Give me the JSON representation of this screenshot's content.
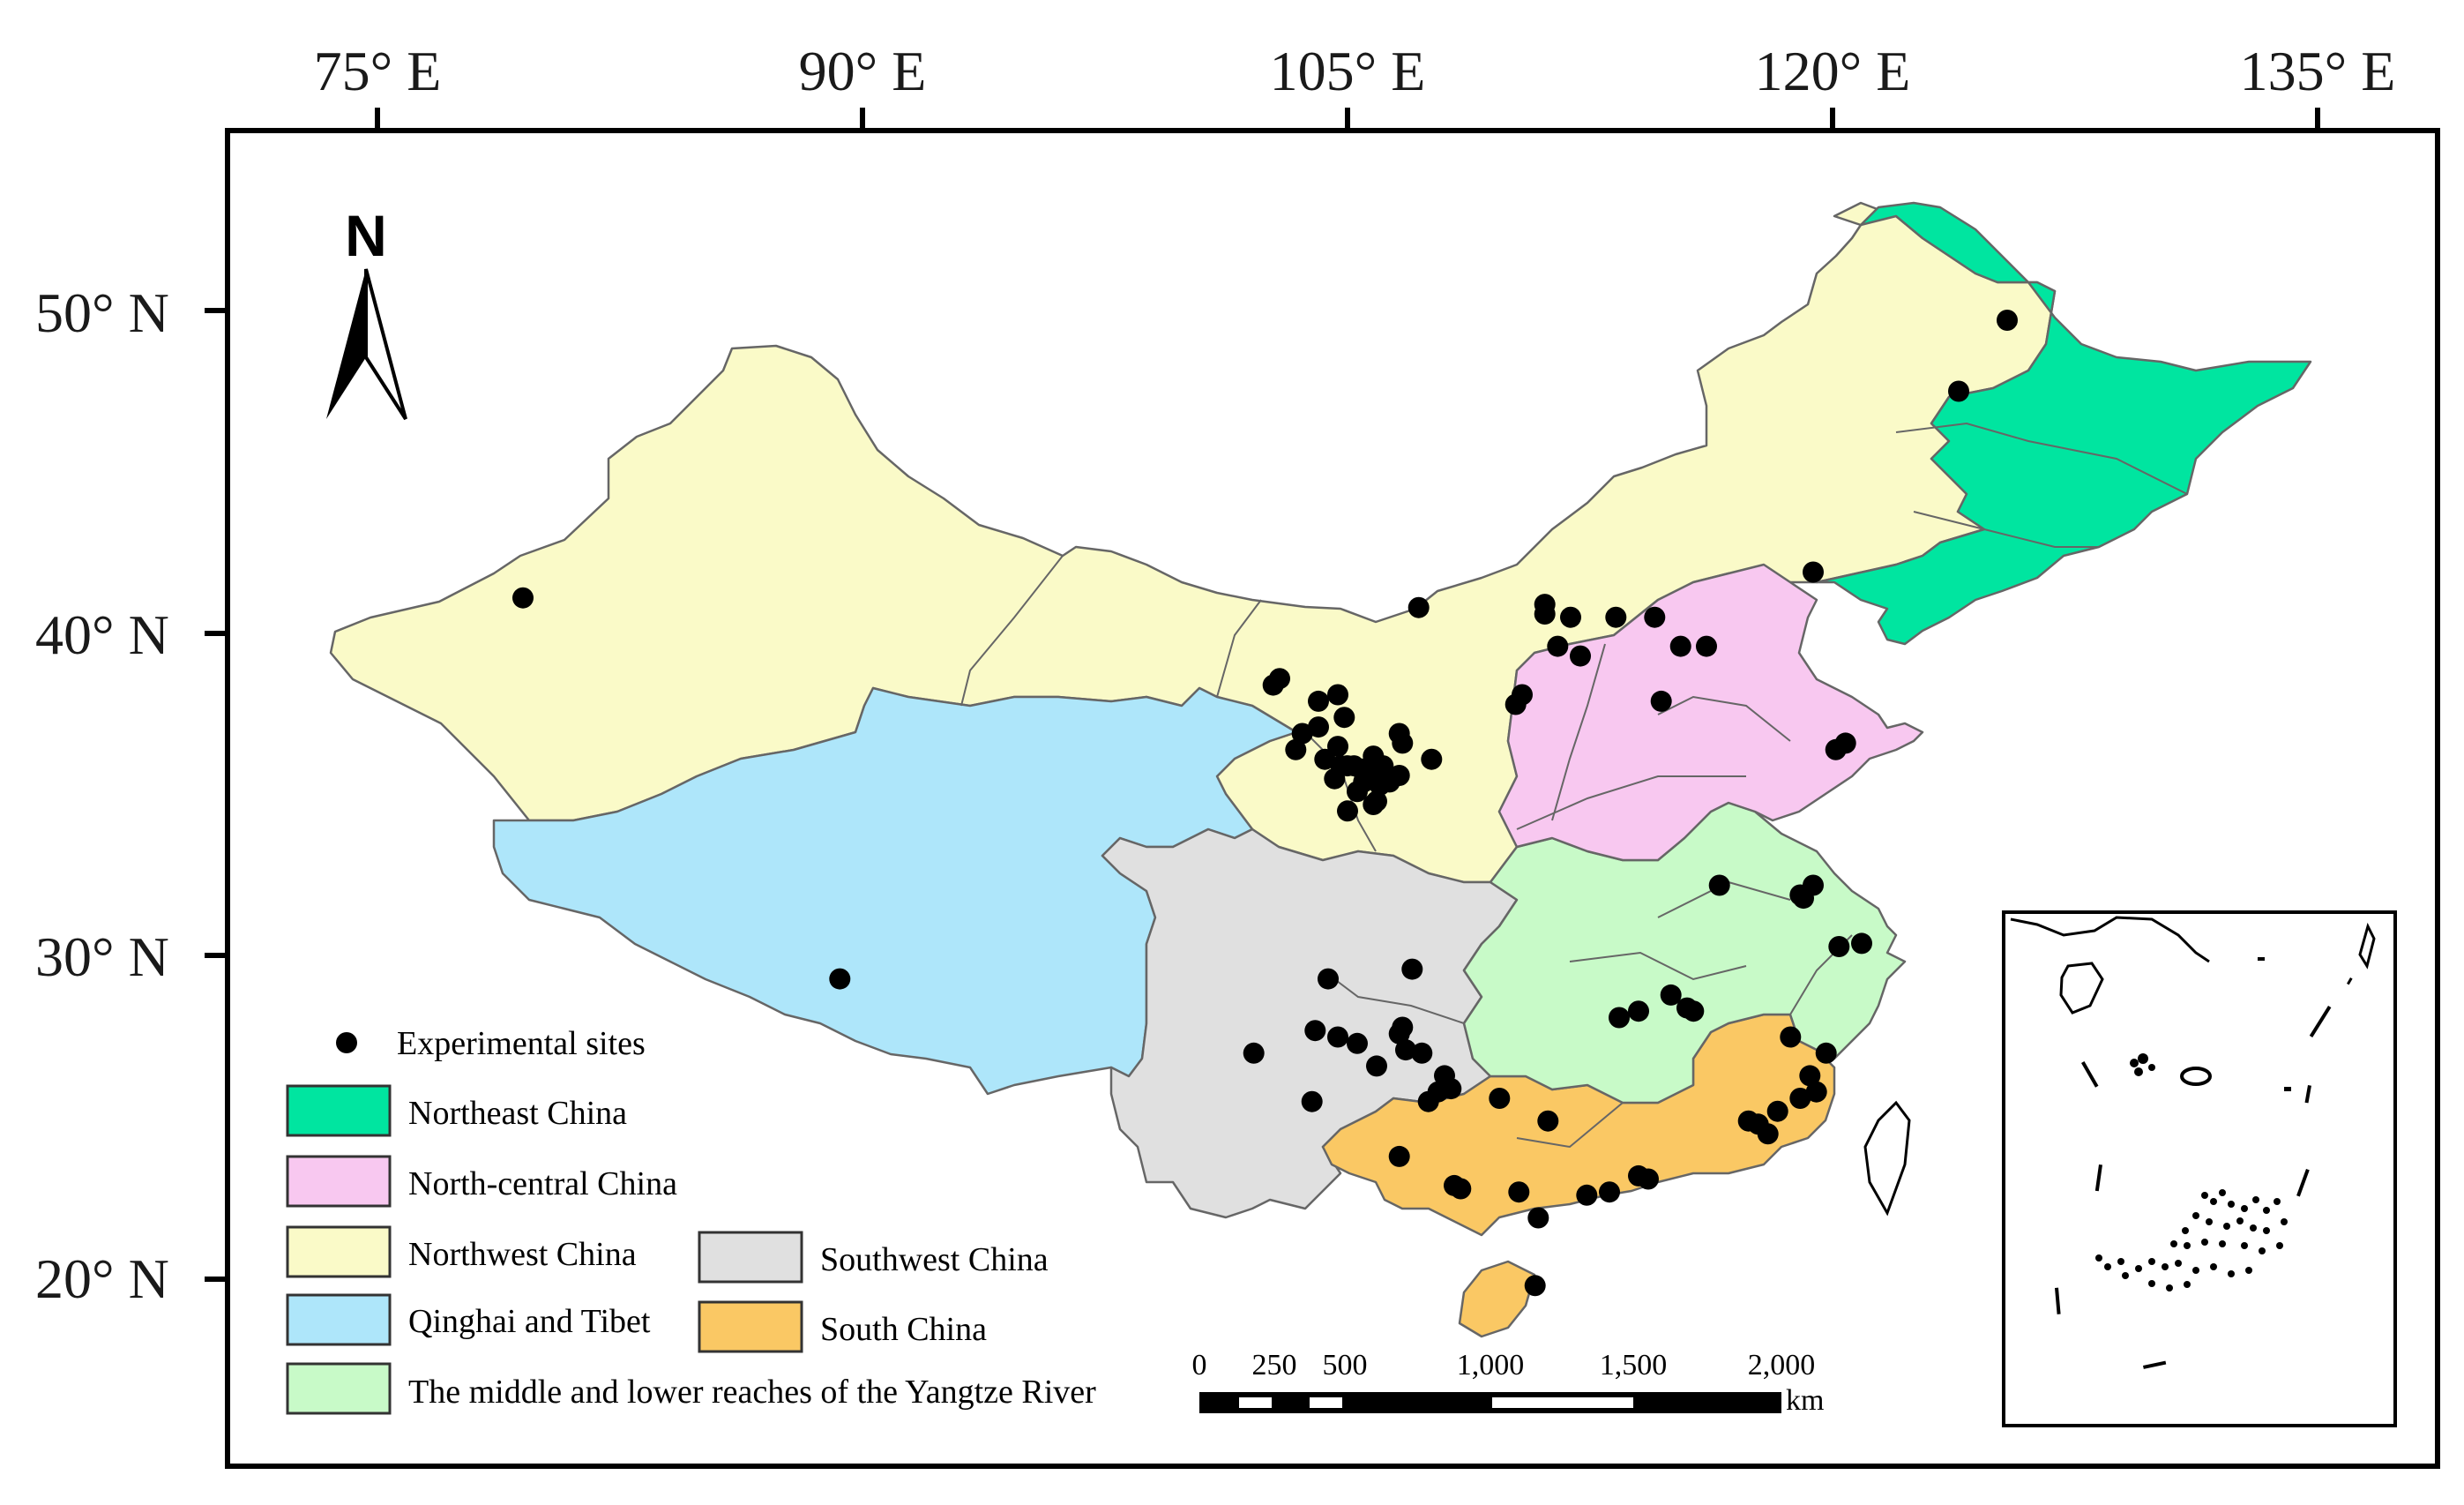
{
  "map": {
    "longitude_ticks": [
      "75° E",
      "90° E",
      "105° E",
      "120° E",
      "135° E"
    ],
    "latitude_ticks": [
      "50° N",
      "40° N",
      "30° N",
      "20° N"
    ],
    "north_arrow_label": "N",
    "legend": {
      "sites_label": "Experimental sites",
      "regions": [
        {
          "label": "Northeast China",
          "color": "#00e5a0"
        },
        {
          "label": "North-central China",
          "color": "#f8c8f0"
        },
        {
          "label": "Northwest China",
          "color": "#fafac8"
        },
        {
          "label": "Qinghai and Tibet",
          "color": "#aee6fa"
        },
        {
          "label": "The middle and lower reaches of the Yangtze River",
          "color": "#c8fac8"
        },
        {
          "label": "Southwest China",
          "color": "#e0e0e0"
        },
        {
          "label": "South China",
          "color": "#fac864"
        }
      ]
    },
    "scale_bar": {
      "labels": [
        "0",
        "250",
        "500",
        "1,000",
        "1,500",
        "2,000"
      ],
      "unit": "km"
    },
    "colors": {
      "sites": "#000000",
      "frame": "#000000",
      "boundary": "#666666"
    }
  }
}
